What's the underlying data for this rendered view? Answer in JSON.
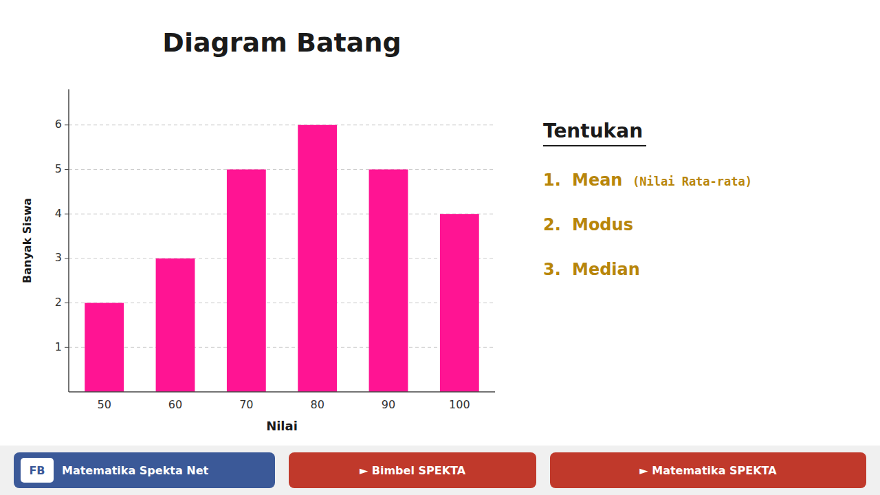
{
  "chart_data": {
    "type": "bar",
    "title": "Diagram Batang",
    "categories": [
      "50",
      "60",
      "70",
      "80",
      "90",
      "100"
    ],
    "values": [
      2,
      3,
      5,
      6,
      5,
      4
    ],
    "color": "#FF1493",
    "xlabel": "Nilai",
    "ylabel": "Banyak Siswa",
    "ylim": [
      0,
      6.8
    ],
    "yticks": [
      1,
      2,
      3,
      4,
      5,
      6
    ],
    "grid": true,
    "annotations": [
      "Tentukan",
      "1.",
      "Mean",
      "(Nilai Rata-rata)",
      "2.",
      "Modus",
      "3.",
      "Median",
      "FB",
      "Matematika Spekta Net",
      "► Bimbel SPEKTA",
      "► Matematika SPEKTA"
    ]
  }
}
